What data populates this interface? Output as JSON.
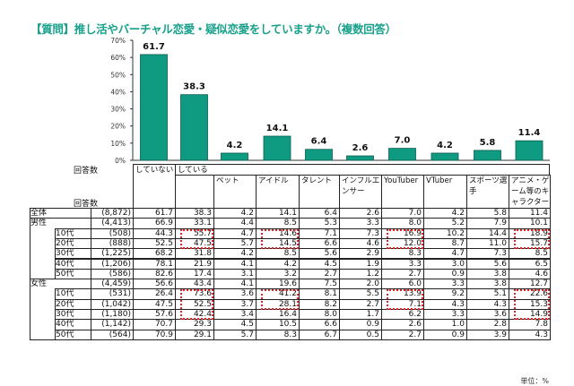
{
  "title": "【質問】推し活やバーチャル恋愛・疑似恋愛をしていますか。（複数回答）",
  "unit_note": "単位：%",
  "respondents_label": "回答数",
  "colors": {
    "title": "#17a08a",
    "bar": "#0f9a82",
    "bar_edge": "#0b5e50",
    "highlight": "#e0242a"
  },
  "chart_data": {
    "type": "bar",
    "categories": [
      "していない",
      "している",
      "ペット",
      "アイドル",
      "タレント",
      "インフルエンサー",
      "YouTuber",
      "VTuber",
      "スポーツ選手",
      "アニメ・ゲーム等のキャラクター"
    ],
    "values": [
      61.7,
      38.3,
      4.2,
      14.1,
      6.4,
      2.6,
      7.0,
      4.2,
      5.8,
      11.4
    ],
    "value_labels": [
      "61.7",
      "38.3",
      "4.2",
      "14.1",
      "6.4",
      "2.6",
      "7.0",
      "4.2",
      "5.8",
      "11.4"
    ],
    "ylim": [
      0,
      70
    ],
    "yticks": [
      "0%",
      "10%",
      "20%",
      "30%",
      "40%",
      "50%",
      "60%",
      "70%"
    ],
    "grid": false
  },
  "table": {
    "columns": [
      "していない",
      "している",
      "ペット",
      "アイドル",
      "タレント",
      "インフルエンサー",
      "YouTuber",
      "VTuber",
      "スポーツ選手",
      "アニメ・ゲーム等のキャラクター"
    ],
    "rows": [
      {
        "label": "全体",
        "group": "",
        "n": "(8,872)",
        "values": [
          "61.7",
          "38.3",
          "4.2",
          "14.1",
          "6.4",
          "2.6",
          "7.0",
          "4.2",
          "5.8",
          "11.4"
        ]
      },
      {
        "label": "男性",
        "group": "男性",
        "n": "(4,413)",
        "values": [
          "66.9",
          "33.1",
          "4.4",
          "8.5",
          "5.3",
          "3.3",
          "8.0",
          "5.2",
          "7.9",
          "10.1"
        ]
      },
      {
        "label": "10代",
        "group": "男性",
        "n": "(508)",
        "values": [
          "44.3",
          "55.7",
          "4.7",
          "14.6",
          "7.1",
          "7.3",
          "16.9",
          "10.2",
          "14.4",
          "18.9"
        ]
      },
      {
        "label": "20代",
        "group": "男性",
        "n": "(888)",
        "values": [
          "52.5",
          "47.5",
          "5.7",
          "14.5",
          "6.6",
          "4.6",
          "12.0",
          "8.7",
          "11.0",
          "15.7"
        ]
      },
      {
        "label": "30代",
        "group": "男性",
        "n": "(1,225)",
        "values": [
          "68.2",
          "31.8",
          "4.2",
          "8.5",
          "5.6",
          "2.9",
          "8.3",
          "4.7",
          "7.3",
          "8.5"
        ]
      },
      {
        "label": "40代",
        "group": "男性",
        "n": "(1,206)",
        "values": [
          "78.1",
          "21.9",
          "4.1",
          "4.2",
          "4.5",
          "1.9",
          "3.3",
          "3.0",
          "5.6",
          "6.5"
        ]
      },
      {
        "label": "50代",
        "group": "男性",
        "n": "(586)",
        "values": [
          "82.6",
          "17.4",
          "3.1",
          "3.2",
          "2.7",
          "1.2",
          "2.7",
          "0.9",
          "3.8",
          "4.6"
        ]
      },
      {
        "label": "女性",
        "group": "女性",
        "n": "(4,459)",
        "values": [
          "56.6",
          "43.4",
          "4.1",
          "19.6",
          "7.5",
          "2.0",
          "6.0",
          "3.3",
          "3.8",
          "12.7"
        ]
      },
      {
        "label": "10代",
        "group": "女性",
        "n": "(531)",
        "values": [
          "26.4",
          "73.6",
          "3.6",
          "41.2",
          "8.1",
          "5.5",
          "13.9",
          "9.2",
          "5.1",
          "22.6"
        ]
      },
      {
        "label": "20代",
        "group": "女性",
        "n": "(1,042)",
        "values": [
          "47.5",
          "52.5",
          "3.7",
          "28.1",
          "8.2",
          "2.7",
          "7.1",
          "4.3",
          "4.3",
          "15.3"
        ]
      },
      {
        "label": "30代",
        "group": "女性",
        "n": "(1,180)",
        "values": [
          "57.6",
          "42.4",
          "3.4",
          "16.4",
          "8.0",
          "1.7",
          "6.2",
          "3.3",
          "3.6",
          "14.9"
        ]
      },
      {
        "label": "40代",
        "group": "女性",
        "n": "(1,142)",
        "values": [
          "70.7",
          "29.3",
          "4.5",
          "10.5",
          "6.6",
          "0.9",
          "2.6",
          "1.0",
          "2.8",
          "7.8"
        ]
      },
      {
        "label": "50代",
        "group": "女性",
        "n": "(564)",
        "values": [
          "70.9",
          "29.1",
          "5.7",
          "8.3",
          "6.7",
          "0.5",
          "2.7",
          "0.9",
          "3.9",
          "4.3"
        ]
      }
    ],
    "highlights": [
      {
        "column": 1,
        "rows": [
          2,
          3
        ]
      },
      {
        "column": 3,
        "rows": [
          2,
          3
        ]
      },
      {
        "column": 6,
        "rows": [
          2,
          3
        ]
      },
      {
        "column": 9,
        "rows": [
          2,
          3
        ]
      },
      {
        "column": 1,
        "rows": [
          8,
          10
        ]
      },
      {
        "column": 3,
        "rows": [
          8,
          9
        ]
      },
      {
        "column": 6,
        "rows": [
          8,
          9
        ]
      },
      {
        "column": 9,
        "rows": [
          8,
          10
        ]
      }
    ]
  }
}
